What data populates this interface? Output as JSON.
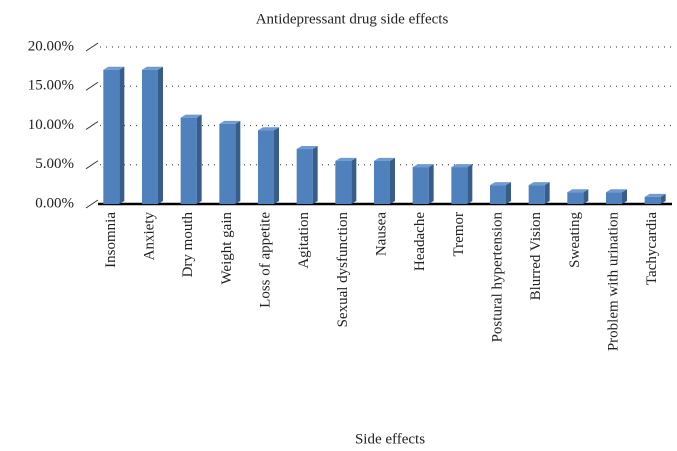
{
  "chart_data": {
    "type": "bar",
    "title": "Antidepressant drug side effects",
    "x_label": "Side effects",
    "categories": [
      "Insomnia",
      "Anxiety",
      "Dry mouth",
      "Weight gain",
      "Loss of appetite",
      "Agitation",
      "Sexual dysfunction",
      "Nausea",
      "Headache",
      "Tremor",
      "Postural hypertension",
      "Blurred Vision",
      "Sweating",
      "Problem with urination",
      "Tachycardia"
    ],
    "values": [
      17.1,
      17.1,
      11.0,
      10.2,
      9.4,
      7.0,
      5.5,
      5.5,
      4.7,
      4.7,
      2.4,
      2.4,
      1.5,
      1.5,
      0.9
    ],
    "color": "#4f81bd",
    "ylim": [
      0,
      20
    ],
    "yticks": [
      {
        "value": 0,
        "label": "0.00%"
      },
      {
        "value": 5,
        "label": "5.00%"
      },
      {
        "value": 10,
        "label": "10.00%"
      },
      {
        "value": 15,
        "label": "15.00%"
      },
      {
        "value": 20,
        "label": "20.00%"
      }
    ],
    "grid": true
  }
}
